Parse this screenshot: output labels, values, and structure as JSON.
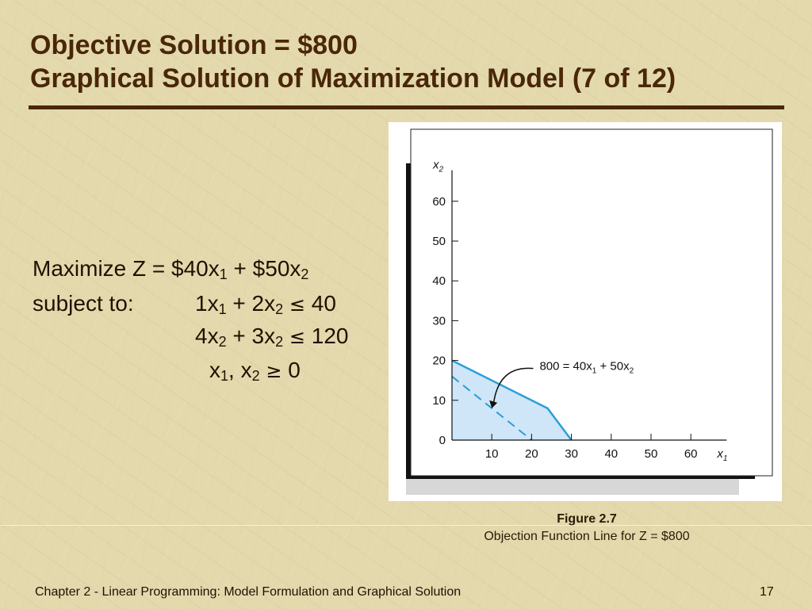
{
  "slide": {
    "title_line1": "Objective Solution = $800",
    "title_line2": "Graphical Solution of Maximization Model (7 of 12)",
    "footer": "Chapter 2 - Linear Programming:  Model Formulation and Graphical Solution",
    "page_number": "17",
    "accent_color": "#4a2708"
  },
  "model": {
    "maximize_prefix": "Maximize Z = $40x",
    "maximize_sub1": "1",
    "maximize_mid": " + $50x",
    "maximize_sub2": "2",
    "subject_to": "subject to:",
    "c1_a": "1x",
    "c1_sub1": "1",
    "c1_b": " + 2x",
    "c1_sub2": "2",
    "c1_op": "≤",
    "c1_rhs": " 40",
    "c2_a": "4x",
    "c2_sub1": "2",
    "c2_b": " + 3x",
    "c2_sub2": "2",
    "c2_op": "≤",
    "c2_rhs": " 120",
    "nn_a": "x",
    "nn_sub1": "1",
    "nn_b": ", x",
    "nn_sub2": "2",
    "nn_op": "≥",
    "nn_rhs": " 0"
  },
  "figure": {
    "number": "Figure 2.7",
    "caption": "Objection Function Line for Z = $800"
  },
  "chart_data": {
    "type": "line",
    "xlabel": "x1",
    "ylabel": "x2",
    "xlim": [
      0,
      70
    ],
    "ylim": [
      0,
      70
    ],
    "x_ticks": [
      10,
      20,
      30,
      40,
      50,
      60
    ],
    "y_ticks": [
      0,
      10,
      20,
      30,
      40,
      50,
      60
    ],
    "grid": false,
    "feasible_region": {
      "vertices": [
        [
          0,
          0
        ],
        [
          0,
          20
        ],
        [
          24,
          8
        ],
        [
          30,
          0
        ]
      ],
      "fill_color": "#cfe6f8",
      "edge_color": "#2a9fd8"
    },
    "objective_line": {
      "points": [
        [
          0,
          16
        ],
        [
          20,
          0
        ]
      ],
      "style": "dashed",
      "color": "#2a9fd8",
      "label_main": "800 = 40x",
      "label_sub1": "1",
      "label_mid": " + 50x",
      "label_sub2": "2",
      "arrow_to": [
        10,
        8
      ]
    }
  }
}
